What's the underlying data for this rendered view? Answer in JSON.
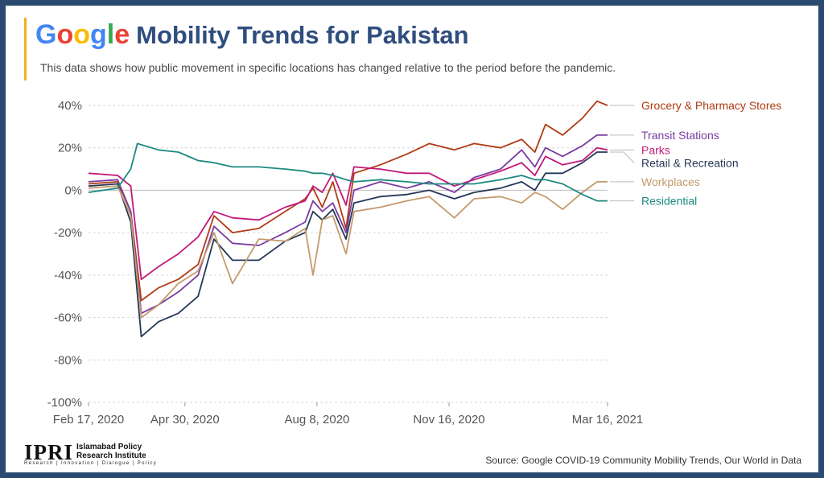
{
  "header": {
    "google_letters": [
      {
        "char": "G",
        "color": "#4285F4"
      },
      {
        "char": "o",
        "color": "#EA4335"
      },
      {
        "char": "o",
        "color": "#FBBC05"
      },
      {
        "char": "g",
        "color": "#4285F4"
      },
      {
        "char": "l",
        "color": "#34A853"
      },
      {
        "char": "e",
        "color": "#EA4335"
      }
    ],
    "title_rest": "Mobility Trends for Pakistan",
    "subtitle": "This data shows how public movement in specific locations has changed relative to the period before the pandemic."
  },
  "footer": {
    "logo_main": "IPRI",
    "logo_name_line1": "Islamabad Policy",
    "logo_name_line2": "Research Institute",
    "logo_tagline": "Research | Innovation | Dialogue | Policy",
    "source": "Source: Google COVID-19 Community Mobility Trends, Our World in Data"
  },
  "chart_data": {
    "type": "line",
    "ylim": [
      -100,
      40
    ],
    "yticks": [
      40,
      20,
      0,
      -20,
      -40,
      -60,
      -80,
      -100
    ],
    "ytick_labels": [
      "40%",
      "20%",
      "0%",
      "-20%",
      "-40%",
      "-60%",
      "-80%",
      "-100%"
    ],
    "xlim": [
      "2020-02-17",
      "2021-03-16"
    ],
    "xticks": [
      "2020-02-17",
      "2020-04-30",
      "2020-08-08",
      "2020-11-16",
      "2021-03-16"
    ],
    "xtick_labels": [
      "Feb 17, 2020",
      "Apr 30, 2020",
      "Aug 8, 2020",
      "Nov 16, 2020",
      "Mar 16, 2021"
    ],
    "grid": "horizontal dashed",
    "legend": "right, labels at line ends",
    "series": [
      {
        "name": "Grocery & Pharmacy Stores",
        "color": "#b23a14",
        "points": [
          [
            "2020-02-17",
            3
          ],
          [
            "2020-03-10",
            4
          ],
          [
            "2020-03-20",
            -10
          ],
          [
            "2020-03-28",
            -52
          ],
          [
            "2020-04-10",
            -46
          ],
          [
            "2020-04-25",
            -42
          ],
          [
            "2020-05-10",
            -35
          ],
          [
            "2020-05-22",
            -12
          ],
          [
            "2020-06-05",
            -20
          ],
          [
            "2020-06-25",
            -18
          ],
          [
            "2020-07-15",
            -10
          ],
          [
            "2020-07-30",
            -4
          ],
          [
            "2020-08-05",
            1
          ],
          [
            "2020-08-12",
            -8
          ],
          [
            "2020-08-20",
            4
          ],
          [
            "2020-08-30",
            -18
          ],
          [
            "2020-09-05",
            8
          ],
          [
            "2020-09-25",
            12
          ],
          [
            "2020-10-15",
            17
          ],
          [
            "2020-11-01",
            22
          ],
          [
            "2020-11-20",
            19
          ],
          [
            "2020-12-05",
            22
          ],
          [
            "2020-12-25",
            20
          ],
          [
            "2021-01-10",
            24
          ],
          [
            "2021-01-20",
            18
          ],
          [
            "2021-01-28",
            31
          ],
          [
            "2021-02-10",
            26
          ],
          [
            "2021-02-25",
            34
          ],
          [
            "2021-03-08",
            42
          ],
          [
            "2021-03-16",
            40
          ]
        ]
      },
      {
        "name": "Transit Stations",
        "color": "#7a3ca0",
        "points": [
          [
            "2020-02-17",
            4
          ],
          [
            "2020-03-10",
            5
          ],
          [
            "2020-03-20",
            -10
          ],
          [
            "2020-03-28",
            -58
          ],
          [
            "2020-04-10",
            -54
          ],
          [
            "2020-04-25",
            -48
          ],
          [
            "2020-05-10",
            -40
          ],
          [
            "2020-05-22",
            -17
          ],
          [
            "2020-06-05",
            -25
          ],
          [
            "2020-06-25",
            -26
          ],
          [
            "2020-07-15",
            -20
          ],
          [
            "2020-07-30",
            -15
          ],
          [
            "2020-08-05",
            -5
          ],
          [
            "2020-08-12",
            -10
          ],
          [
            "2020-08-20",
            -6
          ],
          [
            "2020-08-30",
            -20
          ],
          [
            "2020-09-05",
            0
          ],
          [
            "2020-09-25",
            4
          ],
          [
            "2020-10-15",
            1
          ],
          [
            "2020-11-01",
            4
          ],
          [
            "2020-11-20",
            -1
          ],
          [
            "2020-12-05",
            6
          ],
          [
            "2020-12-25",
            10
          ],
          [
            "2021-01-10",
            19
          ],
          [
            "2021-01-20",
            11
          ],
          [
            "2021-01-28",
            20
          ],
          [
            "2021-02-10",
            16
          ],
          [
            "2021-02-25",
            21
          ],
          [
            "2021-03-08",
            26
          ],
          [
            "2021-03-16",
            26
          ]
        ]
      },
      {
        "name": "Parks",
        "color": "#c2187a",
        "points": [
          [
            "2020-02-17",
            8
          ],
          [
            "2020-03-10",
            7
          ],
          [
            "2020-03-20",
            2
          ],
          [
            "2020-03-28",
            -42
          ],
          [
            "2020-04-10",
            -36
          ],
          [
            "2020-04-25",
            -30
          ],
          [
            "2020-05-10",
            -22
          ],
          [
            "2020-05-22",
            -10
          ],
          [
            "2020-06-05",
            -13
          ],
          [
            "2020-06-25",
            -14
          ],
          [
            "2020-07-15",
            -8
          ],
          [
            "2020-07-30",
            -5
          ],
          [
            "2020-08-05",
            2
          ],
          [
            "2020-08-12",
            -1
          ],
          [
            "2020-08-20",
            8
          ],
          [
            "2020-08-30",
            -7
          ],
          [
            "2020-09-05",
            11
          ],
          [
            "2020-09-25",
            10
          ],
          [
            "2020-10-15",
            8
          ],
          [
            "2020-11-01",
            8
          ],
          [
            "2020-11-20",
            2
          ],
          [
            "2020-12-05",
            5
          ],
          [
            "2020-12-25",
            9
          ],
          [
            "2021-01-10",
            13
          ],
          [
            "2021-01-20",
            7
          ],
          [
            "2021-01-28",
            16
          ],
          [
            "2021-02-10",
            12
          ],
          [
            "2021-02-25",
            14
          ],
          [
            "2021-03-08",
            20
          ],
          [
            "2021-03-16",
            19
          ]
        ]
      },
      {
        "name": "Retail & Recreation",
        "color": "#253858",
        "points": [
          [
            "2020-02-17",
            2
          ],
          [
            "2020-03-10",
            3
          ],
          [
            "2020-03-20",
            -15
          ],
          [
            "2020-03-28",
            -69
          ],
          [
            "2020-04-10",
            -62
          ],
          [
            "2020-04-25",
            -58
          ],
          [
            "2020-05-10",
            -50
          ],
          [
            "2020-05-22",
            -23
          ],
          [
            "2020-06-05",
            -33
          ],
          [
            "2020-06-25",
            -33
          ],
          [
            "2020-07-15",
            -24
          ],
          [
            "2020-07-30",
            -20
          ],
          [
            "2020-08-05",
            -10
          ],
          [
            "2020-08-12",
            -14
          ],
          [
            "2020-08-20",
            -9
          ],
          [
            "2020-08-30",
            -23
          ],
          [
            "2020-09-05",
            -6
          ],
          [
            "2020-09-25",
            -3
          ],
          [
            "2020-10-15",
            -2
          ],
          [
            "2020-11-01",
            0
          ],
          [
            "2020-11-20",
            -4
          ],
          [
            "2020-12-05",
            -1
          ],
          [
            "2020-12-25",
            1
          ],
          [
            "2021-01-10",
            4
          ],
          [
            "2021-01-20",
            0
          ],
          [
            "2021-01-28",
            8
          ],
          [
            "2021-02-10",
            8
          ],
          [
            "2021-02-25",
            13
          ],
          [
            "2021-03-08",
            18
          ],
          [
            "2021-03-16",
            18
          ]
        ]
      },
      {
        "name": "Workplaces",
        "color": "#c49a6c",
        "points": [
          [
            "2020-02-17",
            1
          ],
          [
            "2020-03-10",
            2
          ],
          [
            "2020-03-20",
            -12
          ],
          [
            "2020-03-28",
            -60
          ],
          [
            "2020-04-10",
            -54
          ],
          [
            "2020-04-25",
            -44
          ],
          [
            "2020-05-10",
            -38
          ],
          [
            "2020-05-22",
            -20
          ],
          [
            "2020-06-05",
            -44
          ],
          [
            "2020-06-25",
            -23
          ],
          [
            "2020-07-15",
            -24
          ],
          [
            "2020-07-30",
            -18
          ],
          [
            "2020-08-05",
            -40
          ],
          [
            "2020-08-12",
            -14
          ],
          [
            "2020-08-20",
            -12
          ],
          [
            "2020-08-30",
            -30
          ],
          [
            "2020-09-05",
            -10
          ],
          [
            "2020-09-25",
            -8
          ],
          [
            "2020-10-15",
            -5
          ],
          [
            "2020-11-01",
            -3
          ],
          [
            "2020-11-20",
            -13
          ],
          [
            "2020-12-05",
            -4
          ],
          [
            "2020-12-25",
            -3
          ],
          [
            "2021-01-10",
            -6
          ],
          [
            "2021-01-20",
            -1
          ],
          [
            "2021-01-28",
            -3
          ],
          [
            "2021-02-10",
            -9
          ],
          [
            "2021-02-25",
            -1
          ],
          [
            "2021-03-08",
            4
          ],
          [
            "2021-03-16",
            4
          ]
        ]
      },
      {
        "name": "Residential",
        "color": "#1d8a80",
        "points": [
          [
            "2020-02-17",
            -1
          ],
          [
            "2020-03-10",
            1
          ],
          [
            "2020-03-20",
            10
          ],
          [
            "2020-03-25",
            22
          ],
          [
            "2020-04-10",
            19
          ],
          [
            "2020-04-25",
            18
          ],
          [
            "2020-05-10",
            14
          ],
          [
            "2020-05-22",
            13
          ],
          [
            "2020-06-05",
            11
          ],
          [
            "2020-06-25",
            11
          ],
          [
            "2020-07-15",
            10
          ],
          [
            "2020-07-30",
            9
          ],
          [
            "2020-08-05",
            8
          ],
          [
            "2020-08-12",
            8
          ],
          [
            "2020-08-20",
            7
          ],
          [
            "2020-08-30",
            5
          ],
          [
            "2020-09-05",
            4
          ],
          [
            "2020-09-25",
            5
          ],
          [
            "2020-10-15",
            4
          ],
          [
            "2020-11-01",
            3
          ],
          [
            "2020-11-20",
            3
          ],
          [
            "2020-12-05",
            3
          ],
          [
            "2020-12-25",
            5
          ],
          [
            "2021-01-10",
            7
          ],
          [
            "2021-01-20",
            5
          ],
          [
            "2021-01-28",
            5
          ],
          [
            "2021-02-10",
            3
          ],
          [
            "2021-02-25",
            -2
          ],
          [
            "2021-03-08",
            -5
          ],
          [
            "2021-03-16",
            -5
          ]
        ]
      }
    ]
  }
}
